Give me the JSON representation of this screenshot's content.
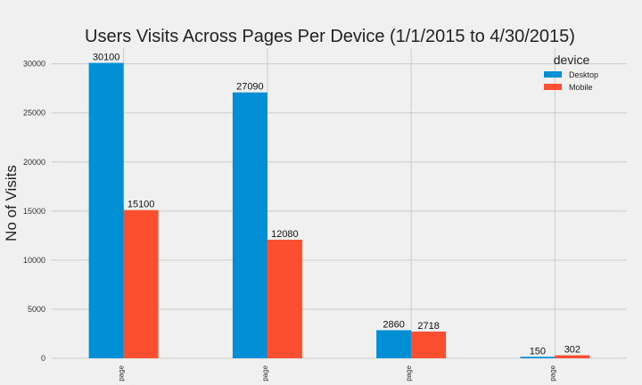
{
  "chart_data": {
    "type": "bar",
    "title": "Users Visits Across Pages Per Device (1/1/2015 to 4/30/2015)",
    "xlabel": "",
    "ylabel": "No of Visits",
    "categories": [
      "page",
      "page",
      "page",
      "page"
    ],
    "series": [
      {
        "name": "Desktop",
        "values": [
          30100,
          27090,
          2860,
          150
        ],
        "color": "#008fd5"
      },
      {
        "name": "Mobile",
        "values": [
          15100,
          12080,
          2718,
          302
        ],
        "color": "#fc4f30"
      }
    ],
    "ylim": [
      0,
      31605
    ],
    "yticks": [
      0,
      5000,
      10000,
      15000,
      20000,
      25000,
      30000
    ],
    "grid": true,
    "legend": {
      "title": "device",
      "placement": "top-right"
    },
    "background_color": "#f0f0f0",
    "grid_color": "#cbcbcb"
  }
}
